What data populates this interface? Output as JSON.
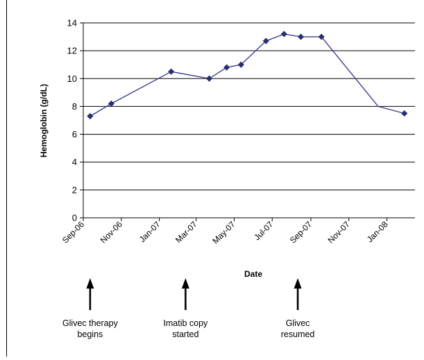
{
  "chart_data": {
    "type": "line",
    "xlabel": "Date",
    "ylabel": "Hemoglobin (g/dL)",
    "ylim": [
      0,
      14
    ],
    "yticks": [
      0,
      2,
      4,
      6,
      8,
      10,
      12,
      14
    ],
    "xlim": [
      "2006-09-01",
      "2008-02-15"
    ],
    "xticks": [
      {
        "date": "2006-09-01",
        "label": "Sep-06"
      },
      {
        "date": "2006-11-01",
        "label": "Nov-06"
      },
      {
        "date": "2007-01-01",
        "label": "Jan-07"
      },
      {
        "date": "2007-03-01",
        "label": "Mar-07"
      },
      {
        "date": "2007-05-01",
        "label": "May-07"
      },
      {
        "date": "2007-07-01",
        "label": "Jul-07"
      },
      {
        "date": "2007-09-01",
        "label": "Sep-07"
      },
      {
        "date": "2007-11-01",
        "label": "Nov-07"
      },
      {
        "date": "2008-01-01",
        "label": "Jan-08"
      }
    ],
    "grid": "horizontal",
    "series": [
      {
        "color": "#3b3f8c",
        "points": [
          {
            "x": "2006-09-12",
            "y": 7.3,
            "marker": true
          },
          {
            "x": "2006-10-16",
            "y": 8.2,
            "marker": true
          },
          {
            "x": "2007-01-20",
            "y": 10.5,
            "marker": true
          },
          {
            "x": "2007-03-22",
            "y": 10.0,
            "marker": true
          },
          {
            "x": "2007-04-19",
            "y": 10.8,
            "marker": true
          },
          {
            "x": "2007-05-12",
            "y": 11.0,
            "marker": true
          },
          {
            "x": "2007-06-21",
            "y": 12.7,
            "marker": true
          },
          {
            "x": "2007-07-20",
            "y": 13.2,
            "marker": true
          },
          {
            "x": "2007-08-16",
            "y": 13.0,
            "marker": true
          },
          {
            "x": "2007-09-18",
            "y": 13.0,
            "marker": true
          },
          {
            "x": "2007-12-18",
            "y": 8.0,
            "marker": false
          },
          {
            "x": "2008-01-29",
            "y": 7.5,
            "marker": true
          }
        ]
      }
    ],
    "annotations": [
      {
        "x": "2006-09-12",
        "text": "Glivec therapy\nbegins"
      },
      {
        "x": "2007-02-12",
        "text": "Imatib copy\nstarted"
      },
      {
        "x": "2007-08-11",
        "text": "Glivec\nresumed"
      }
    ]
  }
}
